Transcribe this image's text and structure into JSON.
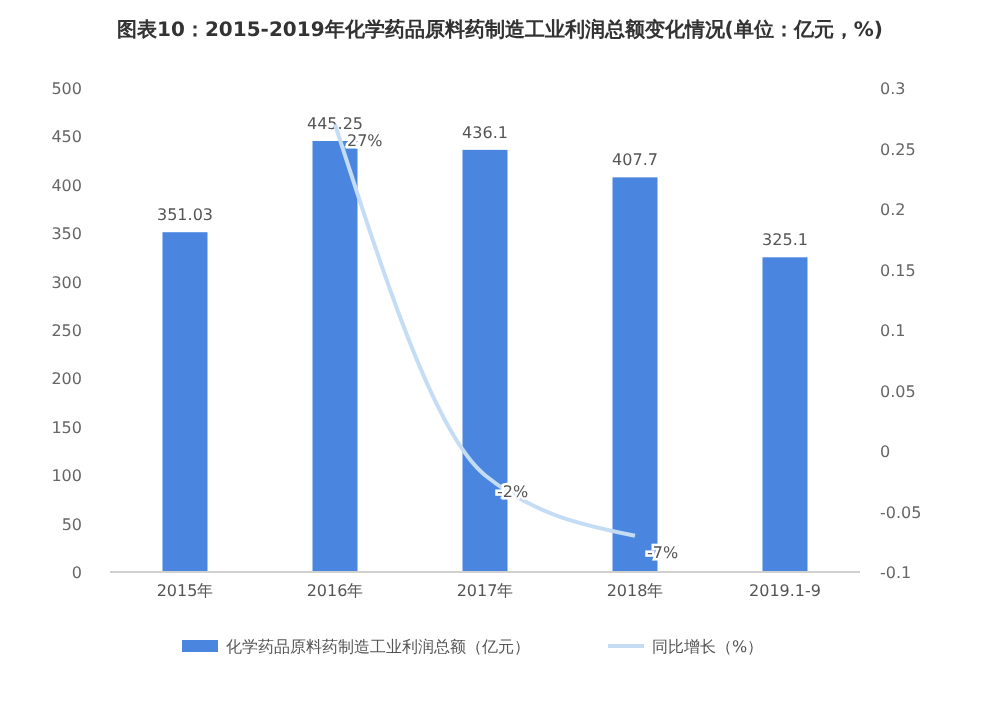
{
  "chart_data": {
    "type": "bar",
    "title": "图表10：2015-2019年化学药品原料药制造工业利润总额变化情况(单位：亿元，%)",
    "categories": [
      "2015年",
      "2016年",
      "2017年",
      "2018年",
      "2019.1-9"
    ],
    "series": [
      {
        "name": "化学药品原料药制造工业利润总额（亿元）",
        "axis": "y",
        "color": "#4a86e0",
        "values": [
          351.03,
          445.25,
          436.1,
          407.7,
          325.1
        ],
        "value_labels": [
          "351.03",
          "445.25",
          "436.1",
          "407.7",
          "325.1"
        ]
      },
      {
        "name": "同比增长（%）",
        "type": "line",
        "axis": "y2",
        "color": "#c5dcf5",
        "values": [
          null,
          0.27,
          -0.02,
          -0.07,
          null
        ],
        "value_labels": [
          null,
          "27%",
          "-2%",
          "-7%",
          null
        ]
      }
    ],
    "ylim": [
      0,
      500
    ],
    "yticks": [
      0,
      50,
      100,
      150,
      200,
      250,
      300,
      350,
      400,
      450,
      500
    ],
    "y2lim": [
      -0.1,
      0.3
    ],
    "y2ticks": [
      -0.1,
      -0.05,
      0,
      0.05,
      0.1,
      0.15,
      0.2,
      0.25,
      0.3
    ],
    "legend": "bottom",
    "grid": false,
    "marker": "none"
  }
}
